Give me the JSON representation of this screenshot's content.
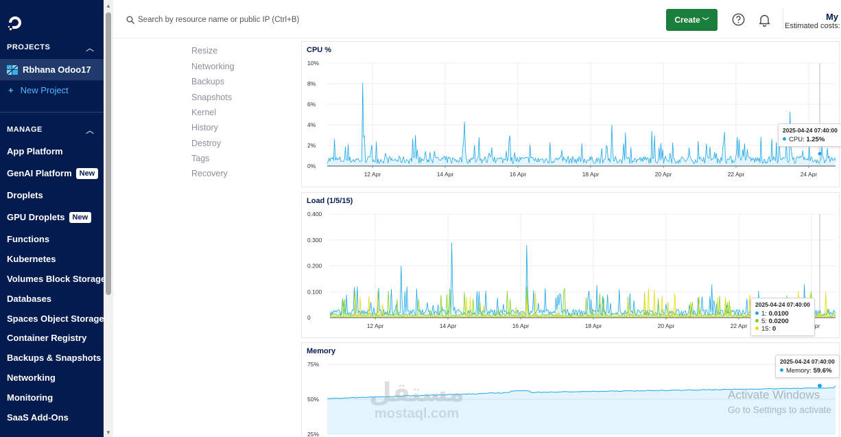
{
  "sidebar": {
    "projects_heading": "PROJECTS",
    "project_name": "Rbhana Odoo17",
    "new_project": "New Project",
    "manage_heading": "MANAGE",
    "badge_new": "New",
    "items": [
      {
        "label": "App Platform",
        "badge": ""
      },
      {
        "label": "GenAI Platform",
        "badge": "New"
      },
      {
        "label": "Droplets",
        "badge": ""
      },
      {
        "label": "GPU Droplets",
        "badge": "New"
      },
      {
        "label": "Functions",
        "badge": ""
      },
      {
        "label": "Kubernetes",
        "badge": ""
      },
      {
        "label": "Volumes Block Storage",
        "badge": ""
      },
      {
        "label": "Databases",
        "badge": ""
      },
      {
        "label": "Spaces Object Storage",
        "badge": ""
      },
      {
        "label": "Container Registry",
        "badge": ""
      },
      {
        "label": "Backups & Snapshots",
        "badge": ""
      },
      {
        "label": "Networking",
        "badge": ""
      },
      {
        "label": "Monitoring",
        "badge": ""
      },
      {
        "label": "SaaS Add-Ons",
        "badge": ""
      }
    ]
  },
  "header": {
    "search_placeholder": "Search by resource name or public IP (Ctrl+B)",
    "create_label": "Create",
    "account_name": "My",
    "estimated_costs": "Estimated costs:"
  },
  "subnav": [
    "Resize",
    "Networking",
    "Backups",
    "Snapshots",
    "Kernel",
    "History",
    "Destroy",
    "Tags",
    "Recovery"
  ],
  "colors": {
    "sidebar_bg": "#031b4e",
    "accent_blue": "#1ba7e8",
    "load_green": "#7ed321",
    "load_yellow": "#e8dc00",
    "create_green": "#1a7f3c"
  },
  "chart_data": [
    {
      "type": "line",
      "title": "CPU %",
      "y_ticks": [
        "10%",
        "8%",
        "6%",
        "4%",
        "2%",
        "0%"
      ],
      "ylim": [
        0,
        10
      ],
      "x_ticks": [
        "12 Apr",
        "14 Apr",
        "16 Apr",
        "18 Apr",
        "20 Apr",
        "22 Apr",
        "24 Apr"
      ],
      "grid": true,
      "series": [
        {
          "name": "CPU",
          "baseline": 0.6,
          "peaks": [
            [
              0.07,
              8.1
            ],
            [
              0.27,
              4.3
            ],
            [
              0.56,
              4.0
            ],
            [
              0.91,
              5.3
            ]
          ]
        }
      ],
      "tooltip": {
        "time": "2025-04-24 07:40:00",
        "rows": [
          {
            "label": "CPU:",
            "value": "1.25%"
          }
        ]
      }
    },
    {
      "type": "line",
      "title": "Load (1/5/15)",
      "y_ticks": [
        "0.400",
        "0.300",
        "0.200",
        "0.100",
        "0"
      ],
      "ylim": [
        0,
        0.4
      ],
      "x_ticks": [
        "12 Apr",
        "14 Apr",
        "16 Apr",
        "18 Apr",
        "20 Apr",
        "22 Apr",
        "24 Apr"
      ],
      "grid": true,
      "series": [
        {
          "name": "1",
          "baseline": 0.02,
          "peaks": [
            [
              0.24,
              0.29
            ],
            [
              0.39,
              0.28
            ],
            [
              0.14,
              0.2
            ]
          ]
        },
        {
          "name": "5",
          "baseline": 0.01,
          "peaks": [
            [
              0.39,
              0.12
            ]
          ]
        },
        {
          "name": "15",
          "baseline": 0.005,
          "peaks": [
            [
              0.39,
              0.08
            ]
          ]
        }
      ],
      "tooltip": {
        "time": "2025-04-24 07:40:00",
        "rows": [
          {
            "label": "1:",
            "value": "0.0100"
          },
          {
            "label": "5:",
            "value": "0.0200"
          },
          {
            "label": "15:",
            "value": "0"
          }
        ]
      }
    },
    {
      "type": "area",
      "title": "Memory",
      "y_ticks": [
        "75%",
        "50%",
        "25%"
      ],
      "ylim": [
        25,
        75
      ],
      "grid": true,
      "series": [
        {
          "name": "Memory",
          "start": 50.5,
          "end": 59.6
        }
      ],
      "tooltip": {
        "time": "2025-04-24 07:40:00",
        "rows": [
          {
            "label": "Memory:",
            "value": "59.6%"
          }
        ]
      }
    }
  ],
  "watermarks": {
    "mostaql_ar": "مستقل",
    "mostaql_en": "mostaql.com",
    "activate_title": "Activate Windows",
    "activate_sub": "Go to Settings to activate"
  }
}
